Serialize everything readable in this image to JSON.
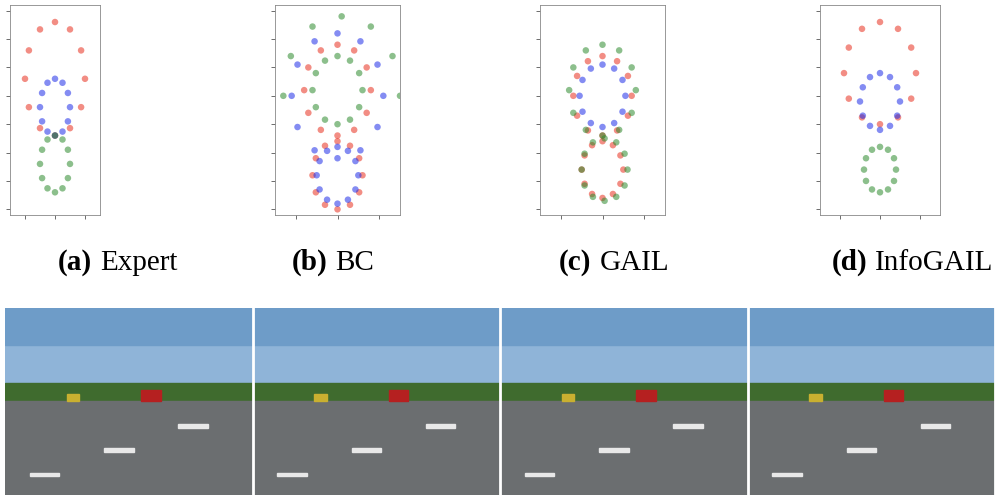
{
  "chart_data": [
    {
      "type": "scatter",
      "panel": "(a)",
      "title": "Expert",
      "xlim": [
        -15,
        15
      ],
      "ylim": [
        -16,
        21
      ],
      "xticks": [
        -10,
        0,
        10
      ],
      "yticks": [
        -15,
        -10,
        -5,
        0,
        5,
        10,
        15,
        20
      ],
      "tick_labels": false,
      "marker": "o",
      "series": [
        {
          "color": "#e8301f",
          "x": [
            10,
            8.7,
            5,
            0,
            -5,
            -8.7,
            -10,
            -8.7,
            -5,
            0,
            5,
            8.7
          ],
          "y": [
            8,
            13,
            16.7,
            18,
            16.7,
            13,
            8,
            3,
            -0.7,
            -2,
            -0.7,
            3
          ]
        },
        {
          "color": "#1f2ee8",
          "x": [
            5,
            4.3,
            2.5,
            0,
            -2.5,
            -4.3,
            -5,
            -4.3,
            -2.5,
            0,
            2.5,
            4.3
          ],
          "y": [
            3,
            5.5,
            7.3,
            8,
            7.3,
            5.5,
            3,
            0.5,
            -1.3,
            -2,
            -1.3,
            0.5
          ]
        },
        {
          "color": "#2e8b2e",
          "x": [
            5,
            4.3,
            2.5,
            0,
            -2.5,
            -4.3,
            -5,
            -4.3,
            -2.5,
            0,
            2.5,
            4.3
          ],
          "y": [
            -7,
            -4.5,
            -2.7,
            -2,
            -2.7,
            -4.5,
            -7,
            -9.5,
            -11.3,
            -12,
            -11.3,
            -9.5
          ]
        }
      ]
    },
    {
      "type": "scatter",
      "panel": "(b)",
      "title": "BC",
      "xlim": [
        -15,
        15
      ],
      "ylim": [
        -16,
        21
      ],
      "xticks": [
        -10,
        0,
        10
      ],
      "yticks": [
        -15,
        -10,
        -5,
        0,
        5,
        10,
        15,
        20
      ],
      "tick_labels": false,
      "marker": "o",
      "series": [
        {
          "color": "#e8301f",
          "x": [
            8,
            7,
            4,
            0,
            -4,
            -7,
            -8,
            -7,
            -4,
            0,
            4,
            7
          ],
          "y": [
            6,
            10,
            13,
            14,
            13,
            10,
            6,
            2,
            -1,
            -2,
            -1,
            2
          ]
        },
        {
          "color": "#1f2ee8",
          "x": [
            11,
            9.6,
            5.5,
            0,
            -5.5,
            -9.6,
            -11,
            -9.6,
            -5.5,
            0,
            5.5,
            9.6
          ],
          "y": [
            5,
            10.5,
            14.6,
            16,
            14.6,
            10.5,
            5,
            -0.5,
            -4.6,
            -6,
            -4.6,
            -0.5
          ]
        },
        {
          "color": "#2e8b2e",
          "x": [
            6,
            5.2,
            3,
            0,
            -3,
            -5.2,
            -6,
            -5.2,
            -3,
            0,
            3,
            5.2
          ],
          "y": [
            6,
            9,
            11.2,
            12,
            11.2,
            9,
            6,
            3,
            0.8,
            0,
            0.8,
            3
          ]
        },
        {
          "color": "#e8301f",
          "x": [
            6,
            5.2,
            3,
            0,
            -3,
            -5.2,
            -6,
            -5.2,
            -3,
            0,
            3,
            5.2
          ],
          "y": [
            -9,
            -6,
            -3.8,
            -3,
            -3.8,
            -6,
            -9,
            -12,
            -14.2,
            -15,
            -14.2,
            -12
          ]
        },
        {
          "color": "#1f2ee8",
          "x": [
            5,
            4.3,
            2.5,
            0,
            -2.5,
            -4.3,
            -5,
            -4.3,
            -2.5,
            0,
            2.5,
            4.3
          ],
          "y": [
            -9,
            -6.5,
            -4.7,
            -4,
            -4.7,
            -6.5,
            -9,
            -11.5,
            -13.3,
            -14,
            -13.3,
            -11.5
          ]
        },
        {
          "color": "#2e8b2e",
          "x": [
            15,
            13.2,
            8,
            1,
            -6,
            -11.2,
            -13
          ],
          "y": [
            5,
            12,
            17.2,
            19,
            17.2,
            12,
            5
          ]
        }
      ]
    },
    {
      "type": "scatter",
      "panel": "(c)",
      "title": "GAIL",
      "xlim": [
        -15,
        15
      ],
      "ylim": [
        -16,
        21
      ],
      "xticks": [
        -10,
        0,
        10
      ],
      "yticks": [
        -15,
        -10,
        -5,
        0,
        5,
        10,
        15,
        20
      ],
      "tick_labels": false,
      "marker": "o",
      "series": [
        {
          "color": "#e8301f",
          "x": [
            7,
            6.1,
            3.5,
            0,
            -3.5,
            -6.1,
            -7,
            -6.1,
            -3.5,
            0,
            3.5,
            6.1
          ],
          "y": [
            5,
            8.5,
            11.1,
            12,
            11.1,
            8.5,
            5,
            1.5,
            -1.1,
            -2,
            -1.1,
            1.5
          ]
        },
        {
          "color": "#1f2ee8",
          "x": [
            5.5,
            4.8,
            2.8,
            0,
            -2.8,
            -4.8,
            -5.5,
            -4.8,
            -2.8,
            0,
            2.8,
            4.8
          ],
          "y": [
            5,
            7.8,
            9.8,
            10.5,
            9.8,
            7.8,
            5,
            2.2,
            0.2,
            -0.5,
            0.2,
            2.2
          ]
        },
        {
          "color": "#2e8b2e",
          "x": [
            8,
            7,
            4,
            0,
            -4,
            -7,
            -8,
            -7,
            -4,
            0,
            4,
            7
          ],
          "y": [
            6,
            10,
            13,
            14,
            13,
            10,
            6,
            2,
            -1,
            -2,
            -1,
            2
          ]
        },
        {
          "color": "#e8301f",
          "x": [
            5,
            4.3,
            2.5,
            0,
            -2.5,
            -4.3,
            -5,
            -4.3,
            -2.5,
            0,
            2.5,
            4.3
          ],
          "y": [
            -8,
            -5.5,
            -3.7,
            -3,
            -3.7,
            -5.5,
            -8,
            -10.5,
            -12.3,
            -13,
            -12.3,
            -10.5
          ]
        },
        {
          "color": "#2e8b2e",
          "x": [
            6,
            5.3,
            3.3,
            0.5,
            -2.3,
            -4.3,
            -5,
            -4.3,
            -2.3,
            0.5,
            3.3,
            5.3
          ],
          "y": [
            -8,
            -5.2,
            -3.2,
            -2.5,
            -3.2,
            -5.2,
            -8,
            -10.8,
            -12.8,
            -13.5,
            -12.8,
            -10.8
          ]
        }
      ]
    },
    {
      "type": "scatter",
      "panel": "(d)",
      "title": "InfoGAIL",
      "xlim": [
        -15,
        15
      ],
      "ylim": [
        -16,
        21
      ],
      "xticks": [
        -10,
        0,
        10
      ],
      "yticks": [
        -15,
        -10,
        -5,
        0,
        5,
        10,
        15,
        20
      ],
      "tick_labels": false,
      "marker": "o",
      "series": [
        {
          "color": "#e8301f",
          "x": [
            9,
            7.8,
            4.5,
            0,
            -4.5,
            -7.8,
            -9,
            -7.8,
            -4.5,
            0,
            4.5,
            7.8
          ],
          "y": [
            9,
            13.5,
            16.8,
            18,
            16.8,
            13.5,
            9,
            4.5,
            1.2,
            0,
            1.2,
            4.5
          ]
        },
        {
          "color": "#1f2ee8",
          "x": [
            5,
            4.3,
            2.5,
            0,
            -2.5,
            -4.3,
            -5,
            -4.3,
            -2.5,
            0,
            2.5,
            4.3
          ],
          "y": [
            4,
            6.5,
            8.3,
            9,
            8.3,
            6.5,
            4,
            1.5,
            -0.3,
            -1,
            -0.3,
            1.5
          ]
        },
        {
          "color": "#2e8b2e",
          "x": [
            4,
            3.5,
            2,
            0,
            -2,
            -3.5,
            -4,
            -3.5,
            -2,
            0,
            2,
            3.5
          ],
          "y": [
            -8,
            -6,
            -4.5,
            -4,
            -4.5,
            -6,
            -8,
            -10,
            -11.5,
            -12,
            -11.5,
            -10
          ]
        }
      ]
    }
  ]
}
